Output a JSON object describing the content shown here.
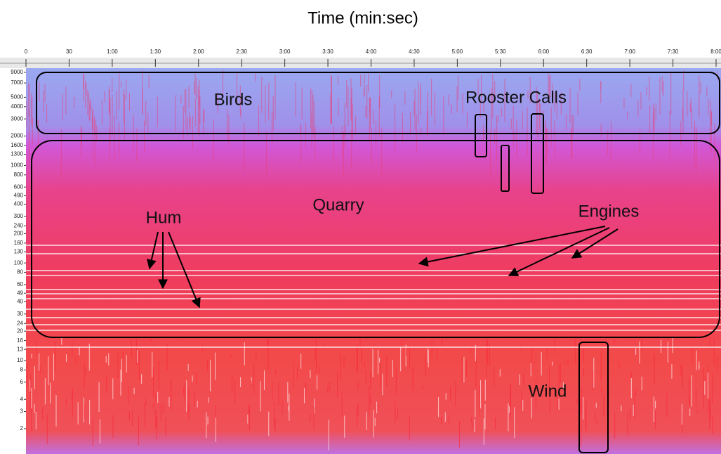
{
  "title": "Time (min:sec)",
  "time_ticks": [
    "0",
    "30",
    "1:00",
    "1:30",
    "2:00",
    "2:30",
    "3:00",
    "3:30",
    "4:00",
    "4:30",
    "5:00",
    "5:30",
    "6:00",
    "6:30",
    "7:00",
    "7:30",
    "8:00"
  ],
  "frequency_ticks": [
    9000,
    7000,
    5000,
    4000,
    3000,
    2000,
    1600,
    1300,
    1000,
    800,
    600,
    490,
    400,
    300,
    240,
    200,
    160,
    130,
    100,
    80,
    60,
    49,
    40,
    30,
    24,
    20,
    16,
    13,
    10,
    8,
    6,
    4,
    3,
    2
  ],
  "annotations": {
    "birds": "Birds",
    "rooster_calls": "Rooster Calls",
    "quarry": "Quarry",
    "hum": "Hum",
    "engines": "Engines",
    "wind": "Wind"
  }
}
